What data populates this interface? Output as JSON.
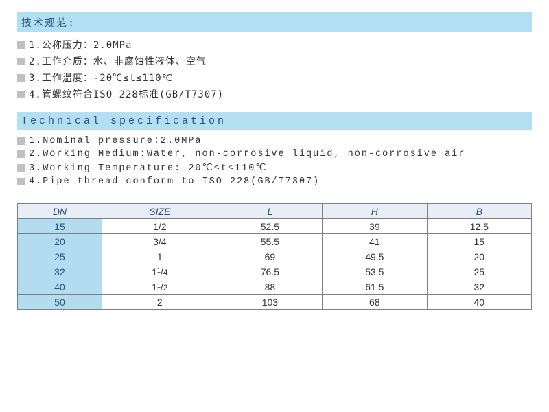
{
  "spec_cn": {
    "header": "技术规范:",
    "items": [
      "1.公称压力：2.0MPa",
      "2.工作介质：水、非腐蚀性液体、空气",
      "3.工作温度：-20℃≤t≤110℃",
      "4.管螺纹符合ISO 228标准(GB/T7307)"
    ]
  },
  "spec_en": {
    "header": "Technical specification",
    "items": [
      "1.Nominal pressure:2.0MPa",
      "2.Working Medium:Water, non-corrosive liquid, non-corrosive air",
      "3.Working Temperature:-20℃≤t≤110℃",
      "4.Pipe thread conform to ISO 228(GB/T7307)"
    ]
  },
  "table": {
    "columns": [
      "DN",
      "SIZE",
      "L",
      "H",
      "B"
    ],
    "col_widths": [
      "150px",
      "150px",
      "150px",
      "150px",
      "150px"
    ],
    "header_bg": "#e8eef5",
    "dn_bg": "#b3dcf0",
    "border_color": "#808080",
    "rows": [
      {
        "dn": "15",
        "size": "1/2",
        "l": "52.5",
        "h": "39",
        "b": "12.5"
      },
      {
        "dn": "20",
        "size": "3/4",
        "l": "55.5",
        "h": "41",
        "b": "15"
      },
      {
        "dn": "25",
        "size": "1",
        "l": "69",
        "h": "49.5",
        "b": "20"
      },
      {
        "dn": "32",
        "size": "1¹/4",
        "l": "76.5",
        "h": "53.5",
        "b": "25"
      },
      {
        "dn": "40",
        "size": "1¹/2",
        "l": "88",
        "h": "61.5",
        "b": "32"
      },
      {
        "dn": "50",
        "size": "2",
        "l": "103",
        "h": "68",
        "b": "40"
      }
    ]
  },
  "colors": {
    "header_blue": "#b3dff2",
    "text_blue": "#2a5080",
    "bullet_gray": "#c0c0c0"
  }
}
